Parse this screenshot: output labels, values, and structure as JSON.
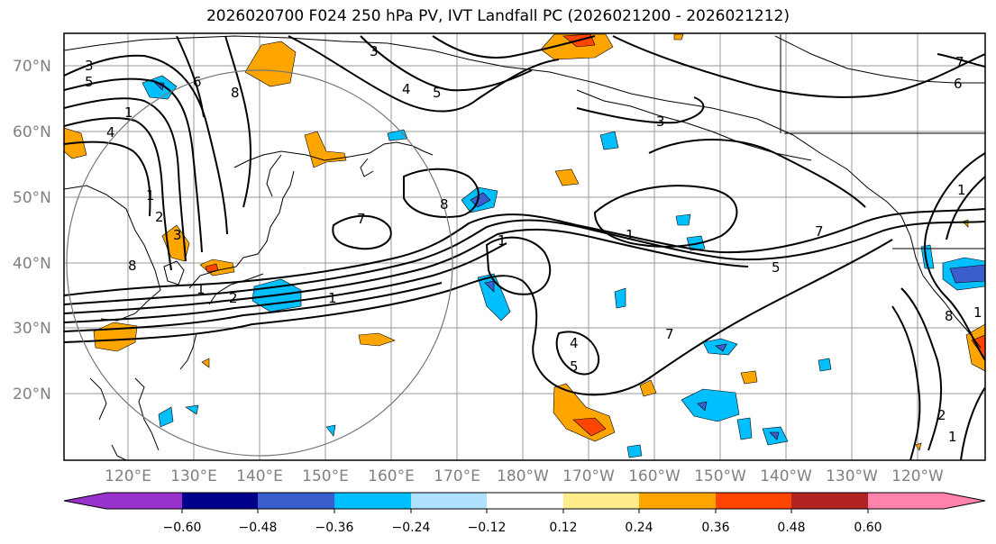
{
  "title": "2026020700 F024 250 hPa PV, IVT Landfall PC (2026021200 - 2026021212)",
  "lat_labels": [
    "70°N",
    "60°N",
    "50°N",
    "40°N",
    "30°N",
    "20°N"
  ],
  "lon_labels": [
    "120°E",
    "130°E",
    "140°E",
    "150°E",
    "160°E",
    "170°E",
    "180°W",
    "170°W",
    "160°W",
    "150°W",
    "140°W",
    "130°W",
    "120°W"
  ],
  "colorbar": {
    "ticks": [
      "−0.60",
      "−0.48",
      "−0.36",
      "−0.24",
      "−0.12",
      "0.12",
      "0.24",
      "0.36",
      "0.48",
      "0.60"
    ],
    "colors": [
      "#9932CC",
      "#00008B",
      "#3A5FCD",
      "#00BFFF",
      "#B0E2FF",
      "#FFFFFF",
      "#FFEC8B",
      "#FFA500",
      "#FF4500",
      "#B22222",
      "#FF82AB"
    ]
  },
  "contour_labels": [
    "3",
    "5",
    "4",
    "6",
    "8",
    "4",
    "5",
    "3",
    "1",
    "2",
    "3",
    "8",
    "1",
    "7",
    "8",
    "1",
    "1",
    "2",
    "4",
    "5",
    "3",
    "1",
    "5",
    "7",
    "7",
    "6",
    "1",
    "7",
    "1",
    "8",
    "2",
    "1",
    "1"
  ]
}
